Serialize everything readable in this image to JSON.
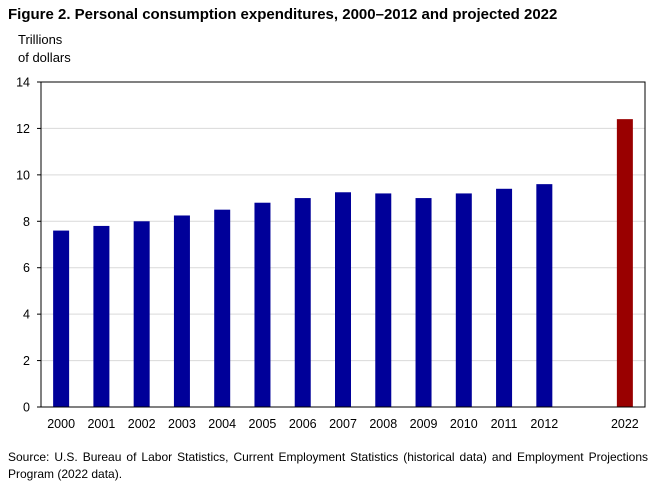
{
  "chart_data": {
    "type": "bar",
    "title": "Figure 2. Personal consumption expenditures, 2000–2012 and projected 2022",
    "ylabel_lines": [
      "Trillions",
      "of dollars"
    ],
    "xlabel": "",
    "categories": [
      "2000",
      "2001",
      "2002",
      "2003",
      "2004",
      "2005",
      "2006",
      "2007",
      "2008",
      "2009",
      "2010",
      "2011",
      "2012",
      "2022"
    ],
    "values": [
      7.6,
      7.8,
      8.0,
      8.25,
      8.5,
      8.8,
      9.0,
      9.25,
      9.2,
      9.0,
      9.2,
      9.4,
      9.6,
      12.4
    ],
    "slots": [
      0,
      1,
      2,
      3,
      4,
      5,
      6,
      7,
      8,
      9,
      10,
      11,
      12,
      14
    ],
    "colors": {
      "historical": "#000099",
      "projected": "#990000"
    },
    "projected_categories": [
      "2022"
    ],
    "ylim": [
      0,
      14
    ],
    "yticks": [
      0,
      2,
      4,
      6,
      8,
      10,
      12,
      14
    ],
    "grid": true,
    "source": "Source:  U.S. Bureau of Labor Statistics, Current Employment Statistics (historical data) and Employment Projections Program (2022 data)."
  }
}
